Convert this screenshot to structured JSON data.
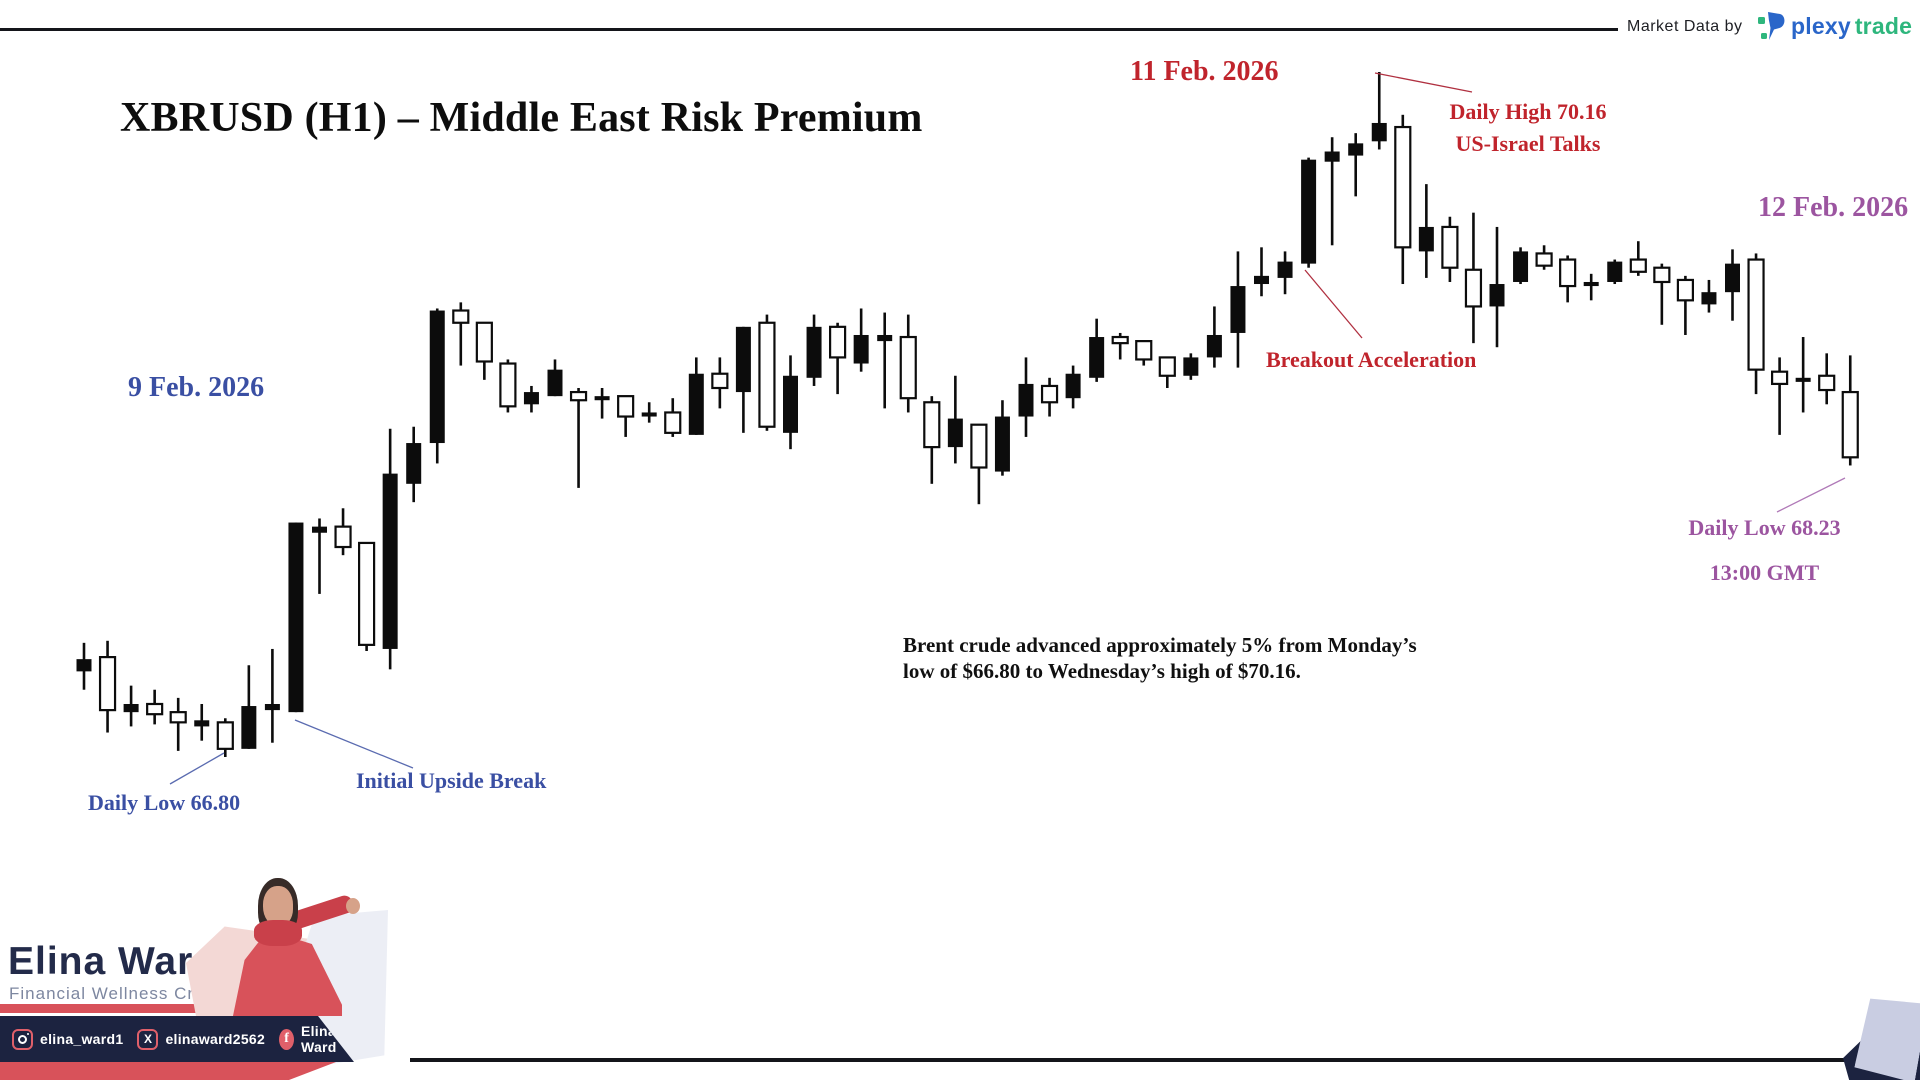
{
  "header": {
    "market_data_label": "Market Data by",
    "logo": {
      "word_primary": "plexy",
      "word_secondary": "trade"
    }
  },
  "chart": {
    "title": "XBRUSD (H1) – Middle East Risk Premium",
    "date_labels": [
      {
        "text": "9 Feb. 2026"
      },
      {
        "text": "11 Feb. 2026"
      },
      {
        "text": "12 Feb. 2026"
      }
    ],
    "annotations": {
      "daily_high_line1": "Daily High 70.16",
      "daily_high_line2": "US-Israel Talks",
      "breakout": "Breakout Acceleration",
      "daily_low12_line1": "Daily Low 68.23",
      "daily_low12_line2": "13:00 GMT",
      "daily_low9": "Daily Low 66.80",
      "initial_break": "Initial Upside Break"
    },
    "caption_line1": "Brent crude advanced approximately 5% from Monday’s",
    "caption_line2": "low of $66.80 to Wednesday’s high of $70.16."
  },
  "chart_data": {
    "type": "candlestick",
    "symbol": "XBRUSD",
    "timeframe": "H1",
    "title": "XBRUSD (H1) – Middle East Risk Premium",
    "price_range": [
      66.8,
      70.16
    ],
    "key_levels": {
      "daily_low_9feb": 66.8,
      "daily_high_11feb": 70.16,
      "daily_low_12feb_1300gmt": 68.23
    },
    "legend_position": "none",
    "grid": false,
    "candles_ohlc": [
      [
        67.22,
        67.36,
        67.13,
        67.28
      ],
      [
        67.29,
        67.37,
        66.92,
        67.03
      ],
      [
        67.02,
        67.15,
        66.95,
        67.06
      ],
      [
        67.06,
        67.13,
        66.96,
        67.01
      ],
      [
        67.02,
        67.09,
        66.83,
        66.97
      ],
      [
        66.95,
        67.06,
        66.88,
        66.98
      ],
      [
        66.97,
        66.99,
        66.8,
        66.84
      ],
      [
        66.84,
        67.25,
        66.84,
        67.05
      ],
      [
        67.03,
        67.33,
        66.87,
        67.06
      ],
      [
        67.02,
        67.95,
        67.02,
        67.95
      ],
      [
        67.9,
        67.97,
        67.6,
        67.93
      ],
      [
        67.93,
        68.02,
        67.79,
        67.83
      ],
      [
        67.85,
        67.85,
        67.32,
        67.35
      ],
      [
        67.33,
        68.41,
        67.23,
        68.19
      ],
      [
        68.14,
        68.42,
        68.05,
        68.34
      ],
      [
        68.34,
        69.0,
        68.24,
        68.99
      ],
      [
        68.99,
        69.03,
        68.72,
        68.93
      ],
      [
        68.93,
        68.93,
        68.65,
        68.74
      ],
      [
        68.73,
        68.75,
        68.49,
        68.52
      ],
      [
        68.53,
        68.62,
        68.49,
        68.59
      ],
      [
        68.57,
        68.75,
        68.57,
        68.7
      ],
      [
        68.59,
        68.61,
        68.12,
        68.55
      ],
      [
        68.55,
        68.61,
        68.46,
        68.57
      ],
      [
        68.57,
        68.57,
        68.37,
        68.47
      ],
      [
        68.47,
        68.54,
        68.44,
        68.49
      ],
      [
        68.49,
        68.56,
        68.37,
        68.39
      ],
      [
        68.38,
        68.76,
        68.38,
        68.68
      ],
      [
        68.68,
        68.76,
        68.51,
        68.61
      ],
      [
        68.59,
        68.91,
        68.39,
        68.91
      ],
      [
        68.93,
        68.97,
        68.4,
        68.42
      ],
      [
        68.39,
        68.77,
        68.31,
        68.67
      ],
      [
        68.66,
        68.97,
        68.62,
        68.91
      ],
      [
        68.91,
        68.93,
        68.58,
        68.76
      ],
      [
        68.73,
        69.0,
        68.69,
        68.87
      ],
      [
        68.84,
        68.98,
        68.51,
        68.87
      ],
      [
        68.86,
        68.97,
        68.49,
        68.56
      ],
      [
        68.54,
        68.57,
        68.14,
        68.32
      ],
      [
        68.32,
        68.67,
        68.24,
        68.46
      ],
      [
        68.43,
        68.43,
        68.04,
        68.22
      ],
      [
        68.2,
        68.55,
        68.18,
        68.47
      ],
      [
        68.47,
        68.76,
        68.37,
        68.63
      ],
      [
        68.62,
        68.66,
        68.47,
        68.54
      ],
      [
        68.56,
        68.72,
        68.51,
        68.68
      ],
      [
        68.66,
        68.95,
        68.64,
        68.86
      ],
      [
        68.86,
        68.88,
        68.75,
        68.83
      ],
      [
        68.84,
        68.84,
        68.72,
        68.75
      ],
      [
        68.76,
        68.76,
        68.61,
        68.67
      ],
      [
        68.67,
        68.78,
        68.65,
        68.76
      ],
      [
        68.76,
        69.01,
        68.71,
        68.87
      ],
      [
        68.88,
        69.28,
        68.71,
        69.11
      ],
      [
        69.12,
        69.3,
        69.06,
        69.16
      ],
      [
        69.15,
        69.28,
        69.07,
        69.23
      ],
      [
        69.22,
        69.74,
        69.2,
        69.73
      ],
      [
        69.72,
        69.84,
        69.31,
        69.77
      ],
      [
        69.75,
        69.86,
        69.55,
        69.81
      ],
      [
        69.82,
        70.16,
        69.78,
        69.91
      ],
      [
        69.89,
        69.95,
        69.12,
        69.3
      ],
      [
        69.28,
        69.61,
        69.15,
        69.4
      ],
      [
        69.4,
        69.45,
        69.13,
        69.2
      ],
      [
        69.19,
        69.47,
        68.83,
        69.01
      ],
      [
        69.01,
        69.4,
        68.81,
        69.12
      ],
      [
        69.13,
        69.3,
        69.12,
        69.28
      ],
      [
        69.27,
        69.31,
        69.19,
        69.21
      ],
      [
        69.24,
        69.26,
        69.03,
        69.11
      ],
      [
        69.11,
        69.17,
        69.04,
        69.13
      ],
      [
        69.13,
        69.24,
        69.12,
        69.23
      ],
      [
        69.24,
        69.33,
        69.16,
        69.18
      ],
      [
        69.2,
        69.22,
        68.92,
        69.13
      ],
      [
        69.14,
        69.16,
        68.87,
        69.04
      ],
      [
        69.02,
        69.14,
        68.98,
        69.08
      ],
      [
        69.08,
        69.29,
        68.94,
        69.22
      ],
      [
        69.24,
        69.27,
        68.58,
        68.7
      ],
      [
        68.69,
        68.76,
        68.38,
        68.63
      ],
      [
        68.64,
        68.86,
        68.49,
        68.66
      ],
      [
        68.67,
        68.78,
        68.53,
        68.6
      ],
      [
        68.59,
        68.77,
        68.23,
        68.27
      ]
    ]
  },
  "branding": {
    "name": "Elina Ward",
    "tagline": "Financial Wellness Creator",
    "socials": [
      {
        "network": "instagram",
        "handle": "elina_ward1"
      },
      {
        "network": "x",
        "handle": "elinaward2562"
      },
      {
        "network": "facebook",
        "handle": "Elina Ward"
      }
    ]
  },
  "colors": {
    "annotation_blue": "#3a4fa3",
    "annotation_red": "#c0242c",
    "annotation_purple": "#9c55a0",
    "candle_black": "#0c0c0c",
    "brand_navy": "#232b4a",
    "brand_red": "#d8525a",
    "logo_blue": "#2a66c9",
    "logo_green": "#2eb67d"
  }
}
